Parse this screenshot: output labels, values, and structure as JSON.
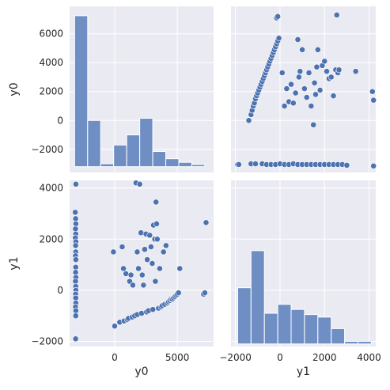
{
  "chart_data": {
    "type": "pairplot",
    "variables": [
      "y0",
      "y1"
    ],
    "grid": true,
    "colors": {
      "panel_bg": "#eaeaf2",
      "grid": "#ffffff",
      "marker": "#4c72b0",
      "bar": "#6f8fc4",
      "bar_edge": "#ffffff"
    },
    "axes": {
      "y0": {
        "label": "y0",
        "range": [
          -3600,
          7900
        ],
        "ticks": [
          -2000,
          0,
          2000,
          4000,
          6000
        ]
      },
      "y0_x": {
        "label": "y0",
        "range": [
          -3600,
          7900
        ],
        "ticks": [
          0,
          5000
        ]
      },
      "y1": {
        "label": "y1",
        "range": [
          -2200,
          4300
        ],
        "ticks": [
          -2000,
          0,
          2000,
          4000
        ]
      }
    },
    "histograms": [
      {
        "variable": "y0",
        "bins": [
          {
            "x0": -3200,
            "x1": -2160,
            "height": 7250
          },
          {
            "x0": -2160,
            "x1": -1120,
            "height": 0
          },
          {
            "x0": -1120,
            "x1": -80,
            "height": -3000
          },
          {
            "x0": -80,
            "x1": 960,
            "height": -1700
          },
          {
            "x0": 960,
            "x1": 2000,
            "height": -1000
          },
          {
            "x0": 2000,
            "x1": 3040,
            "height": 150
          },
          {
            "x0": 3040,
            "x1": 4080,
            "height": -2150
          },
          {
            "x0": 4080,
            "x1": 5120,
            "height": -2650
          },
          {
            "x0": 5120,
            "x1": 6160,
            "height": -2900
          },
          {
            "x0": 6160,
            "x1": 7200,
            "height": -3050
          }
        ],
        "baseline": -3200
      },
      {
        "variable": "y1",
        "bins": [
          {
            "x0": -1900,
            "x1": -1300,
            "height": 100
          },
          {
            "x0": -1300,
            "x1": -700,
            "height": 1550
          },
          {
            "x0": -700,
            "x1": -100,
            "height": -900
          },
          {
            "x0": -100,
            "x1": 500,
            "height": -550
          },
          {
            "x0": 500,
            "x1": 1100,
            "height": -750
          },
          {
            "x0": 1100,
            "x1": 1700,
            "height": -950
          },
          {
            "x0": 1700,
            "x1": 2300,
            "height": -1050
          },
          {
            "x0": 2300,
            "x1": 2900,
            "height": -1500
          },
          {
            "x0": 2900,
            "x1": 3500,
            "height": -2000
          },
          {
            "x0": 3500,
            "x1": 4100,
            "height": -2000
          }
        ],
        "baseline": -2100
      }
    ],
    "scatter_y1_vs_y0": [
      [
        -3100,
        4150
      ],
      [
        -3150,
        3050
      ],
      [
        -3120,
        2800
      ],
      [
        -3100,
        2600
      ],
      [
        -3130,
        2400
      ],
      [
        -3110,
        2200
      ],
      [
        -3140,
        2050
      ],
      [
        -3100,
        1900
      ],
      [
        -3120,
        1750
      ],
      [
        -3110,
        1500
      ],
      [
        -3130,
        1350
      ],
      [
        -3100,
        1200
      ],
      [
        -3110,
        900
      ],
      [
        -3120,
        700
      ],
      [
        -3100,
        500
      ],
      [
        -3130,
        350
      ],
      [
        -3110,
        150
      ],
      [
        -3100,
        0
      ],
      [
        -3120,
        -150
      ],
      [
        -3110,
        -300
      ],
      [
        -3100,
        -500
      ],
      [
        -3130,
        -650
      ],
      [
        -3100,
        -800
      ],
      [
        -3110,
        -1000
      ],
      [
        -3120,
        -1900
      ],
      [
        -100,
        1500
      ],
      [
        0,
        -1400
      ],
      [
        400,
        -1250
      ],
      [
        600,
        1700
      ],
      [
        700,
        850
      ],
      [
        750,
        -1200
      ],
      [
        900,
        650
      ],
      [
        1000,
        -1150
      ],
      [
        1100,
        -1100
      ],
      [
        1200,
        350
      ],
      [
        1300,
        600
      ],
      [
        1400,
        -1050
      ],
      [
        1450,
        200
      ],
      [
        1600,
        -1000
      ],
      [
        1700,
        4200
      ],
      [
        1800,
        1500
      ],
      [
        1800,
        -950
      ],
      [
        1900,
        850
      ],
      [
        2000,
        4150
      ],
      [
        2100,
        2250
      ],
      [
        2150,
        -900
      ],
      [
        2200,
        600
      ],
      [
        2300,
        200
      ],
      [
        2400,
        1600
      ],
      [
        2500,
        2200
      ],
      [
        2550,
        -850
      ],
      [
        2600,
        1200
      ],
      [
        2700,
        -800
      ],
      [
        2800,
        2150
      ],
      [
        2900,
        1700
      ],
      [
        3000,
        1050
      ],
      [
        3050,
        -750
      ],
      [
        3100,
        2550
      ],
      [
        3200,
        2000
      ],
      [
        3250,
        350
      ],
      [
        3300,
        3450
      ],
      [
        3350,
        2600
      ],
      [
        3400,
        2000
      ],
      [
        3500,
        -700
      ],
      [
        3600,
        850
      ],
      [
        3700,
        -650
      ],
      [
        3800,
        -600
      ],
      [
        3900,
        1500
      ],
      [
        4000,
        -550
      ],
      [
        4100,
        1750
      ],
      [
        4200,
        -500
      ],
      [
        4300,
        -450
      ],
      [
        4400,
        -400
      ],
      [
        4500,
        -350
      ],
      [
        4600,
        -350
      ],
      [
        4700,
        -300
      ],
      [
        4800,
        -250
      ],
      [
        4900,
        -200
      ],
      [
        5000,
        -150
      ],
      [
        5100,
        -100
      ],
      [
        5200,
        850
      ],
      [
        7300,
        2650
      ],
      [
        7100,
        -150
      ],
      [
        7200,
        -100
      ]
    ],
    "scatter_y0_vs_y1": [
      [
        -1900,
        -3050
      ],
      [
        -1850,
        -3050
      ],
      [
        -1300,
        -3000
      ],
      [
        -1100,
        -3000
      ],
      [
        -800,
        -3000
      ],
      [
        -600,
        -3050
      ],
      [
        -400,
        -3050
      ],
      [
        -200,
        -3050
      ],
      [
        0,
        -3000
      ],
      [
        200,
        -3050
      ],
      [
        400,
        -3050
      ],
      [
        600,
        -3000
      ],
      [
        800,
        -3050
      ],
      [
        1000,
        -3050
      ],
      [
        1200,
        -3050
      ],
      [
        1400,
        -3050
      ],
      [
        1600,
        -3050
      ],
      [
        1800,
        -3050
      ],
      [
        2000,
        -3050
      ],
      [
        2200,
        -3050
      ],
      [
        2400,
        -3050
      ],
      [
        2600,
        -3050
      ],
      [
        2800,
        -3050
      ],
      [
        3000,
        -3100
      ],
      [
        4200,
        -3150
      ],
      [
        -1400,
        0
      ],
      [
        -1300,
        400
      ],
      [
        -1250,
        700
      ],
      [
        -1200,
        1000
      ],
      [
        -1150,
        1200
      ],
      [
        -1100,
        1500
      ],
      [
        -1050,
        1700
      ],
      [
        -1000,
        1900
      ],
      [
        -950,
        2100
      ],
      [
        -900,
        2300
      ],
      [
        -850,
        2500
      ],
      [
        -800,
        2700
      ],
      [
        -750,
        2900
      ],
      [
        -700,
        3100
      ],
      [
        -650,
        3300
      ],
      [
        -600,
        3500
      ],
      [
        -550,
        3700
      ],
      [
        -500,
        3900
      ],
      [
        -450,
        4100
      ],
      [
        -400,
        4300
      ],
      [
        -350,
        4500
      ],
      [
        -300,
        4700
      ],
      [
        -250,
        4900
      ],
      [
        -200,
        5100
      ],
      [
        -150,
        5300
      ],
      [
        -100,
        5500
      ],
      [
        -50,
        5700
      ],
      [
        -150,
        7100
      ],
      [
        -100,
        7200
      ],
      [
        100,
        3300
      ],
      [
        200,
        1000
      ],
      [
        300,
        2200
      ],
      [
        400,
        1300
      ],
      [
        500,
        2500
      ],
      [
        600,
        1200
      ],
      [
        700,
        1900
      ],
      [
        800,
        5600
      ],
      [
        850,
        3000
      ],
      [
        900,
        3400
      ],
      [
        1000,
        4900
      ],
      [
        1100,
        2200
      ],
      [
        1200,
        1600
      ],
      [
        1300,
        3300
      ],
      [
        1400,
        1000
      ],
      [
        1500,
        -300
      ],
      [
        1550,
        2600
      ],
      [
        1600,
        1800
      ],
      [
        1650,
        3700
      ],
      [
        1700,
        4900
      ],
      [
        1800,
        2100
      ],
      [
        1900,
        3800
      ],
      [
        2000,
        4100
      ],
      [
        2100,
        3400
      ],
      [
        2200,
        2900
      ],
      [
        2300,
        3000
      ],
      [
        2400,
        1700
      ],
      [
        2500,
        3500
      ],
      [
        2550,
        7300
      ],
      [
        2600,
        3300
      ],
      [
        2650,
        3500
      ],
      [
        3400,
        3400
      ],
      [
        4150,
        2000
      ],
      [
        4200,
        1400
      ]
    ]
  }
}
